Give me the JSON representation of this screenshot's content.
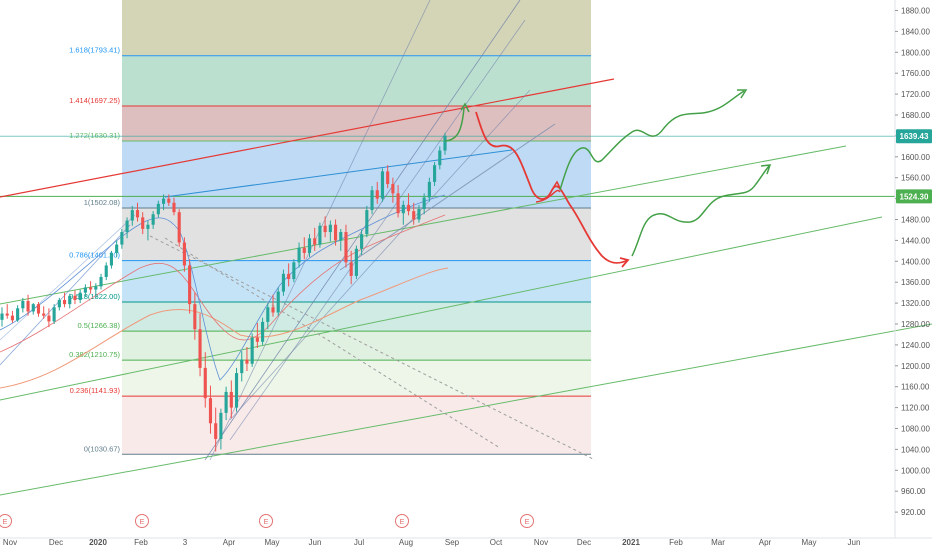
{
  "chart_data": {
    "type": "candlestick",
    "price_axis": {
      "ticks": [
        "1880.00",
        "1840.00",
        "1800.00",
        "1760.00",
        "1720.00",
        "1680.00",
        "1640.00",
        "1600.00",
        "1560.00",
        "1520.00",
        "1480.00",
        "1440.00",
        "1400.00",
        "1360.00",
        "1320.00",
        "1280.00",
        "1240.00",
        "1200.00",
        "1160.00",
        "1120.00",
        "1080.00",
        "1040.00",
        "1000.00",
        "960.00",
        "920.00"
      ],
      "range": [
        905,
        1890
      ]
    },
    "time_axis": {
      "labels": [
        "Nov",
        "Dec",
        "2020",
        "Feb",
        "3",
        "Apr",
        "May",
        "Jun",
        "Jul",
        "Aug",
        "Sep",
        "Oct",
        "Nov",
        "Dec",
        "2021",
        "Feb",
        "Mar",
        "Apr",
        "May",
        "Jun"
      ],
      "bold_labels": [
        "2020",
        "2021"
      ]
    },
    "current_price": {
      "label": "1639.43",
      "value": 1639.43,
      "color": "#26a69a"
    },
    "level_badge": {
      "label": "1524.30",
      "value": 1524.3,
      "color": "#4caf50"
    },
    "fibonacci": {
      "levels": [
        {
          "ratio": 1.618,
          "price": 1793.41,
          "label": "1.618(1793.41)",
          "color": "#2196f3"
        },
        {
          "ratio": 1.414,
          "price": 1697.25,
          "label": "1.414(1697.25)",
          "color": "#e53935"
        },
        {
          "ratio": 1.272,
          "price": 1630.31,
          "label": "1.272(1630.31)",
          "color": "#66bb6a"
        },
        {
          "ratio": 1,
          "price": 1502.08,
          "label": "1(1502.08)",
          "color": "#607d8b"
        },
        {
          "ratio": 0.786,
          "price": 1401.2,
          "label": "0.786(1401.20)",
          "color": "#2196f3"
        },
        {
          "ratio": 0.618,
          "price": 1322.0,
          "label": "0.618(1322.00)",
          "color": "#009688"
        },
        {
          "ratio": 0.5,
          "price": 1266.38,
          "label": "0.5(1266.38)",
          "color": "#4caf50"
        },
        {
          "ratio": 0.382,
          "price": 1210.75,
          "label": "0.382(1210.75)",
          "color": "#4caf50"
        },
        {
          "ratio": 0.236,
          "price": 1141.93,
          "label": "0.236(1141.93)",
          "color": "#e53935"
        },
        {
          "ratio": 0,
          "price": 1030.67,
          "label": "0(1030.67)",
          "color": "#607d8b"
        }
      ],
      "top_zone_color": "#cdcdaa"
    },
    "event_markers": [
      "E",
      "E",
      "E",
      "E",
      "E"
    ],
    "projections": [
      {
        "name": "bearish",
        "color": "#e53935"
      },
      {
        "name": "bullish",
        "color": "#43a047"
      }
    ],
    "candles": [
      [
        1288,
        1312,
        1275,
        1300
      ],
      [
        1300,
        1318,
        1290,
        1296
      ],
      [
        1296,
        1305,
        1282,
        1287
      ],
      [
        1287,
        1316,
        1284,
        1310
      ],
      [
        1310,
        1330,
        1302,
        1324
      ],
      [
        1324,
        1336,
        1296,
        1304
      ],
      [
        1304,
        1320,
        1298,
        1318
      ],
      [
        1318,
        1322,
        1294,
        1300
      ],
      [
        1300,
        1314,
        1290,
        1296
      ],
      [
        1296,
        1310,
        1274,
        1285
      ],
      [
        1285,
        1318,
        1280,
        1312
      ],
      [
        1312,
        1330,
        1306,
        1326
      ],
      [
        1326,
        1340,
        1312,
        1318
      ],
      [
        1318,
        1338,
        1310,
        1334
      ],
      [
        1334,
        1344,
        1318,
        1326
      ],
      [
        1326,
        1346,
        1320,
        1340
      ],
      [
        1340,
        1356,
        1332,
        1350
      ],
      [
        1350,
        1362,
        1338,
        1346
      ],
      [
        1346,
        1358,
        1330,
        1352
      ],
      [
        1352,
        1376,
        1346,
        1370
      ],
      [
        1370,
        1398,
        1364,
        1392
      ],
      [
        1392,
        1420,
        1386,
        1416
      ],
      [
        1416,
        1440,
        1408,
        1432
      ],
      [
        1432,
        1462,
        1424,
        1456
      ],
      [
        1456,
        1484,
        1444,
        1478
      ],
      [
        1478,
        1506,
        1468,
        1498
      ],
      [
        1498,
        1512,
        1476,
        1484
      ],
      [
        1484,
        1494,
        1452,
        1462
      ],
      [
        1462,
        1478,
        1440,
        1470
      ],
      [
        1470,
        1496,
        1462,
        1490
      ],
      [
        1490,
        1516,
        1484,
        1510
      ],
      [
        1510,
        1528,
        1498,
        1520
      ],
      [
        1520,
        1528,
        1506,
        1512
      ],
      [
        1512,
        1522,
        1488,
        1494
      ],
      [
        1494,
        1500,
        1428,
        1436
      ],
      [
        1436,
        1446,
        1380,
        1392
      ],
      [
        1392,
        1404,
        1300,
        1318
      ],
      [
        1318,
        1340,
        1250,
        1270
      ],
      [
        1270,
        1300,
        1180,
        1196
      ],
      [
        1196,
        1226,
        1120,
        1138
      ],
      [
        1138,
        1162,
        1070,
        1090
      ],
      [
        1090,
        1120,
        1036,
        1060
      ],
      [
        1060,
        1118,
        1040,
        1110
      ],
      [
        1110,
        1160,
        1096,
        1150
      ],
      [
        1150,
        1172,
        1100,
        1120
      ],
      [
        1120,
        1196,
        1112,
        1186
      ],
      [
        1186,
        1228,
        1170,
        1212
      ],
      [
        1212,
        1236,
        1190,
        1204
      ],
      [
        1204,
        1262,
        1198,
        1254
      ],
      [
        1254,
        1282,
        1234,
        1246
      ],
      [
        1246,
        1292,
        1240,
        1284
      ],
      [
        1284,
        1320,
        1270,
        1312
      ],
      [
        1312,
        1336,
        1294,
        1302
      ],
      [
        1302,
        1350,
        1296,
        1342
      ],
      [
        1342,
        1384,
        1334,
        1376
      ],
      [
        1376,
        1396,
        1352,
        1366
      ],
      [
        1366,
        1404,
        1360,
        1398
      ],
      [
        1398,
        1436,
        1388,
        1426
      ],
      [
        1426,
        1446,
        1404,
        1416
      ],
      [
        1416,
        1452,
        1408,
        1444
      ],
      [
        1444,
        1464,
        1420,
        1432
      ],
      [
        1432,
        1474,
        1426,
        1468
      ],
      [
        1468,
        1486,
        1446,
        1456
      ],
      [
        1456,
        1478,
        1438,
        1470
      ],
      [
        1470,
        1480,
        1430,
        1440
      ],
      [
        1440,
        1462,
        1420,
        1456
      ],
      [
        1456,
        1470,
        1388,
        1398
      ],
      [
        1398,
        1420,
        1356,
        1372
      ],
      [
        1372,
        1430,
        1366,
        1424
      ],
      [
        1424,
        1460,
        1412,
        1452
      ],
      [
        1452,
        1506,
        1446,
        1498
      ],
      [
        1498,
        1544,
        1490,
        1536
      ],
      [
        1536,
        1552,
        1510,
        1520
      ],
      [
        1520,
        1578,
        1514,
        1572
      ],
      [
        1572,
        1584,
        1540,
        1548
      ],
      [
        1548,
        1560,
        1512,
        1530
      ],
      [
        1530,
        1546,
        1484,
        1492
      ],
      [
        1492,
        1516,
        1470,
        1508
      ],
      [
        1508,
        1530,
        1488,
        1496
      ],
      [
        1496,
        1512,
        1470,
        1480
      ],
      [
        1480,
        1508,
        1474,
        1500
      ],
      [
        1500,
        1530,
        1490,
        1522
      ],
      [
        1522,
        1560,
        1514,
        1552
      ],
      [
        1552,
        1590,
        1544,
        1584
      ],
      [
        1584,
        1620,
        1576,
        1612
      ],
      [
        1612,
        1646,
        1604,
        1640
      ]
    ]
  }
}
